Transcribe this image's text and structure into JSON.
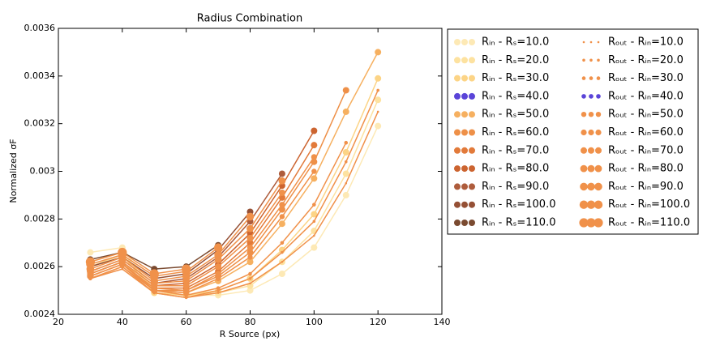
{
  "chart_data": {
    "type": "line",
    "title": "Radius Combination",
    "x_label": "R Source (px)",
    "y_label": "Normalized σF",
    "x": [
      30,
      40,
      50,
      60,
      70,
      80,
      90,
      100,
      110,
      120
    ],
    "xlim": [
      20,
      140
    ],
    "xticks": [
      20,
      40,
      60,
      80,
      100,
      120,
      140
    ],
    "ylim": [
      0.0024,
      0.0036
    ],
    "yticks": [
      0.0024,
      0.0026,
      0.0028,
      0.003,
      0.0032,
      0.0034,
      0.0036
    ],
    "grid": false,
    "legend": "outside right",
    "legend_columns": 2,
    "series": [
      {
        "name": "Rᵢₙ - Rₛ=10.0",
        "color": "#fde9b5",
        "marker_size": 4,
        "values": [
          0.00266,
          0.00268,
          0.0025,
          0.00248,
          0.00248,
          0.0025,
          0.00257,
          0.00268,
          0.0029,
          0.00319
        ]
      },
      {
        "name": "Rᵢₙ - Rₛ=20.0",
        "color": "#fde2a0",
        "marker_size": 4,
        "values": [
          0.00262,
          0.00266,
          0.0025,
          0.00248,
          0.00249,
          0.00252,
          0.00262,
          0.00275,
          0.00299,
          0.0033
        ]
      },
      {
        "name": "Rᵢₙ - Rₛ=30.0",
        "color": "#fcd486",
        "marker_size": 4,
        "values": [
          0.0026,
          0.00265,
          0.00249,
          0.00248,
          0.0025,
          0.00255,
          0.00267,
          0.00282,
          0.00308,
          0.00339
        ]
      },
      {
        "name": "Rᵢₙ - Rₛ=40.0",
        "color": "#5a44d8",
        "marker_size": 4,
        "values": [
          null,
          null,
          null,
          null,
          null,
          null,
          null,
          null,
          null,
          null
        ]
      },
      {
        "name": "Rᵢₙ - Rₛ=50.0",
        "color": "#f6b060",
        "marker_size": 4,
        "values": [
          0.00257,
          0.00262,
          0.0025,
          0.00249,
          0.00254,
          0.00262,
          0.00278,
          0.00297,
          0.00325,
          0.0035
        ]
      },
      {
        "name": "Rᵢₙ - Rₛ=60.0",
        "color": "#ee9048",
        "marker_size": 4,
        "values": [
          0.00256,
          0.00261,
          0.0025,
          0.0025,
          0.00256,
          0.00266,
          0.00284,
          0.00304,
          0.00334,
          null
        ]
      },
      {
        "name": "Rᵢₙ - Rₛ=70.0",
        "color": "#e27a3a",
        "marker_size": 4,
        "values": [
          0.00256,
          0.00261,
          0.00251,
          0.00251,
          0.00258,
          0.0027,
          0.00289,
          0.00311,
          null,
          null
        ]
      },
      {
        "name": "Rᵢₙ - Rₛ=80.0",
        "color": "#cc6430",
        "marker_size": 4,
        "values": [
          0.00257,
          0.00262,
          0.00252,
          0.00253,
          0.00261,
          0.00274,
          0.00294,
          0.00317,
          null,
          null
        ]
      },
      {
        "name": "Rᵢₙ - Rₛ=90.0",
        "color": "#ae5c3c",
        "marker_size": 4,
        "values": [
          0.00258,
          0.00263,
          0.00253,
          0.00255,
          0.00264,
          0.00279,
          0.00299,
          null,
          null,
          null
        ]
      },
      {
        "name": "Rᵢₙ - Rₛ=100.0",
        "color": "#955035",
        "marker_size": 4,
        "values": [
          0.0026,
          0.00264,
          0.00255,
          0.00257,
          0.00267,
          0.00283,
          null,
          null,
          null,
          null
        ]
      },
      {
        "name": "Rᵢₙ - Rₛ=110.0",
        "color": "#7a4a30",
        "marker_size": 4,
        "values": [
          0.00263,
          0.00266,
          0.00259,
          0.0026,
          0.00269,
          null,
          null,
          null,
          null,
          null
        ]
      },
      {
        "name": "Rₒᵤₜ - Rᵢₙ=10.0",
        "color": "#f0914a",
        "marker_size": 1.3,
        "values": [
          0.00255,
          0.00259,
          0.00249,
          0.00247,
          0.00249,
          0.00253,
          0.00262,
          0.00273,
          0.00295,
          0.00325
        ]
      },
      {
        "name": "Rₒᵤₜ - Rᵢₙ=20.0",
        "color": "#f0914a",
        "marker_size": 1.8,
        "values": [
          0.00255,
          0.0026,
          0.00249,
          0.00247,
          0.0025,
          0.00255,
          0.00266,
          0.00279,
          0.00304,
          0.00334
        ]
      },
      {
        "name": "Rₒᵤₜ - Rᵢₙ=30.0",
        "color": "#f0914a",
        "marker_size": 2.3,
        "values": [
          0.00255,
          0.0026,
          0.0025,
          0.00248,
          0.00251,
          0.00257,
          0.0027,
          0.00286,
          0.00312,
          null
        ]
      },
      {
        "name": "Rₒᵤₜ - Rᵢₙ=40.0",
        "color": "#5a44d8",
        "marker_size": 2.8,
        "values": [
          null,
          null,
          null,
          null,
          null,
          null,
          null,
          null,
          null,
          null
        ]
      },
      {
        "name": "Rₒᵤₜ - Rᵢₙ=50.0",
        "color": "#f0914a",
        "marker_size": 3.2,
        "values": [
          0.00256,
          0.00261,
          0.0025,
          0.00249,
          0.00255,
          0.00264,
          0.00281,
          0.003,
          null,
          null
        ]
      },
      {
        "name": "Rₒᵤₜ - Rᵢₙ=60.0",
        "color": "#f0914a",
        "marker_size": 3.6,
        "values": [
          0.00256,
          0.00261,
          0.00251,
          0.0025,
          0.00257,
          0.00268,
          0.00286,
          0.00306,
          null,
          null
        ]
      },
      {
        "name": "Rₒᵤₜ - Rᵢₙ=70.0",
        "color": "#f0914a",
        "marker_size": 4,
        "values": [
          0.00257,
          0.00262,
          0.00252,
          0.00252,
          0.0026,
          0.00272,
          0.00291,
          null,
          null,
          null
        ]
      },
      {
        "name": "Rₒᵤₜ - Rᵢₙ=80.0",
        "color": "#f0914a",
        "marker_size": 4.4,
        "values": [
          0.00258,
          0.00263,
          0.00253,
          0.00254,
          0.00263,
          0.00276,
          0.00296,
          null,
          null,
          null
        ]
      },
      {
        "name": "Rₒᵤₜ - Rᵢₙ=90.0",
        "color": "#f0914a",
        "marker_size": 4.8,
        "values": [
          0.00259,
          0.00264,
          0.00254,
          0.00256,
          0.00265,
          0.00281,
          null,
          null,
          null,
          null
        ]
      },
      {
        "name": "Rₒᵤₜ - Rᵢₙ=100.0",
        "color": "#f0914a",
        "marker_size": 5.2,
        "values": [
          0.00261,
          0.00265,
          0.00256,
          0.00258,
          0.00268,
          null,
          null,
          null,
          null,
          null
        ]
      },
      {
        "name": "Rₒᵤₜ - Rᵢₙ=110.0",
        "color": "#f0914a",
        "marker_size": 5.6,
        "values": [
          0.00262,
          0.00266,
          0.00257,
          0.00259,
          null,
          null,
          null,
          null,
          null,
          null
        ]
      }
    ]
  }
}
